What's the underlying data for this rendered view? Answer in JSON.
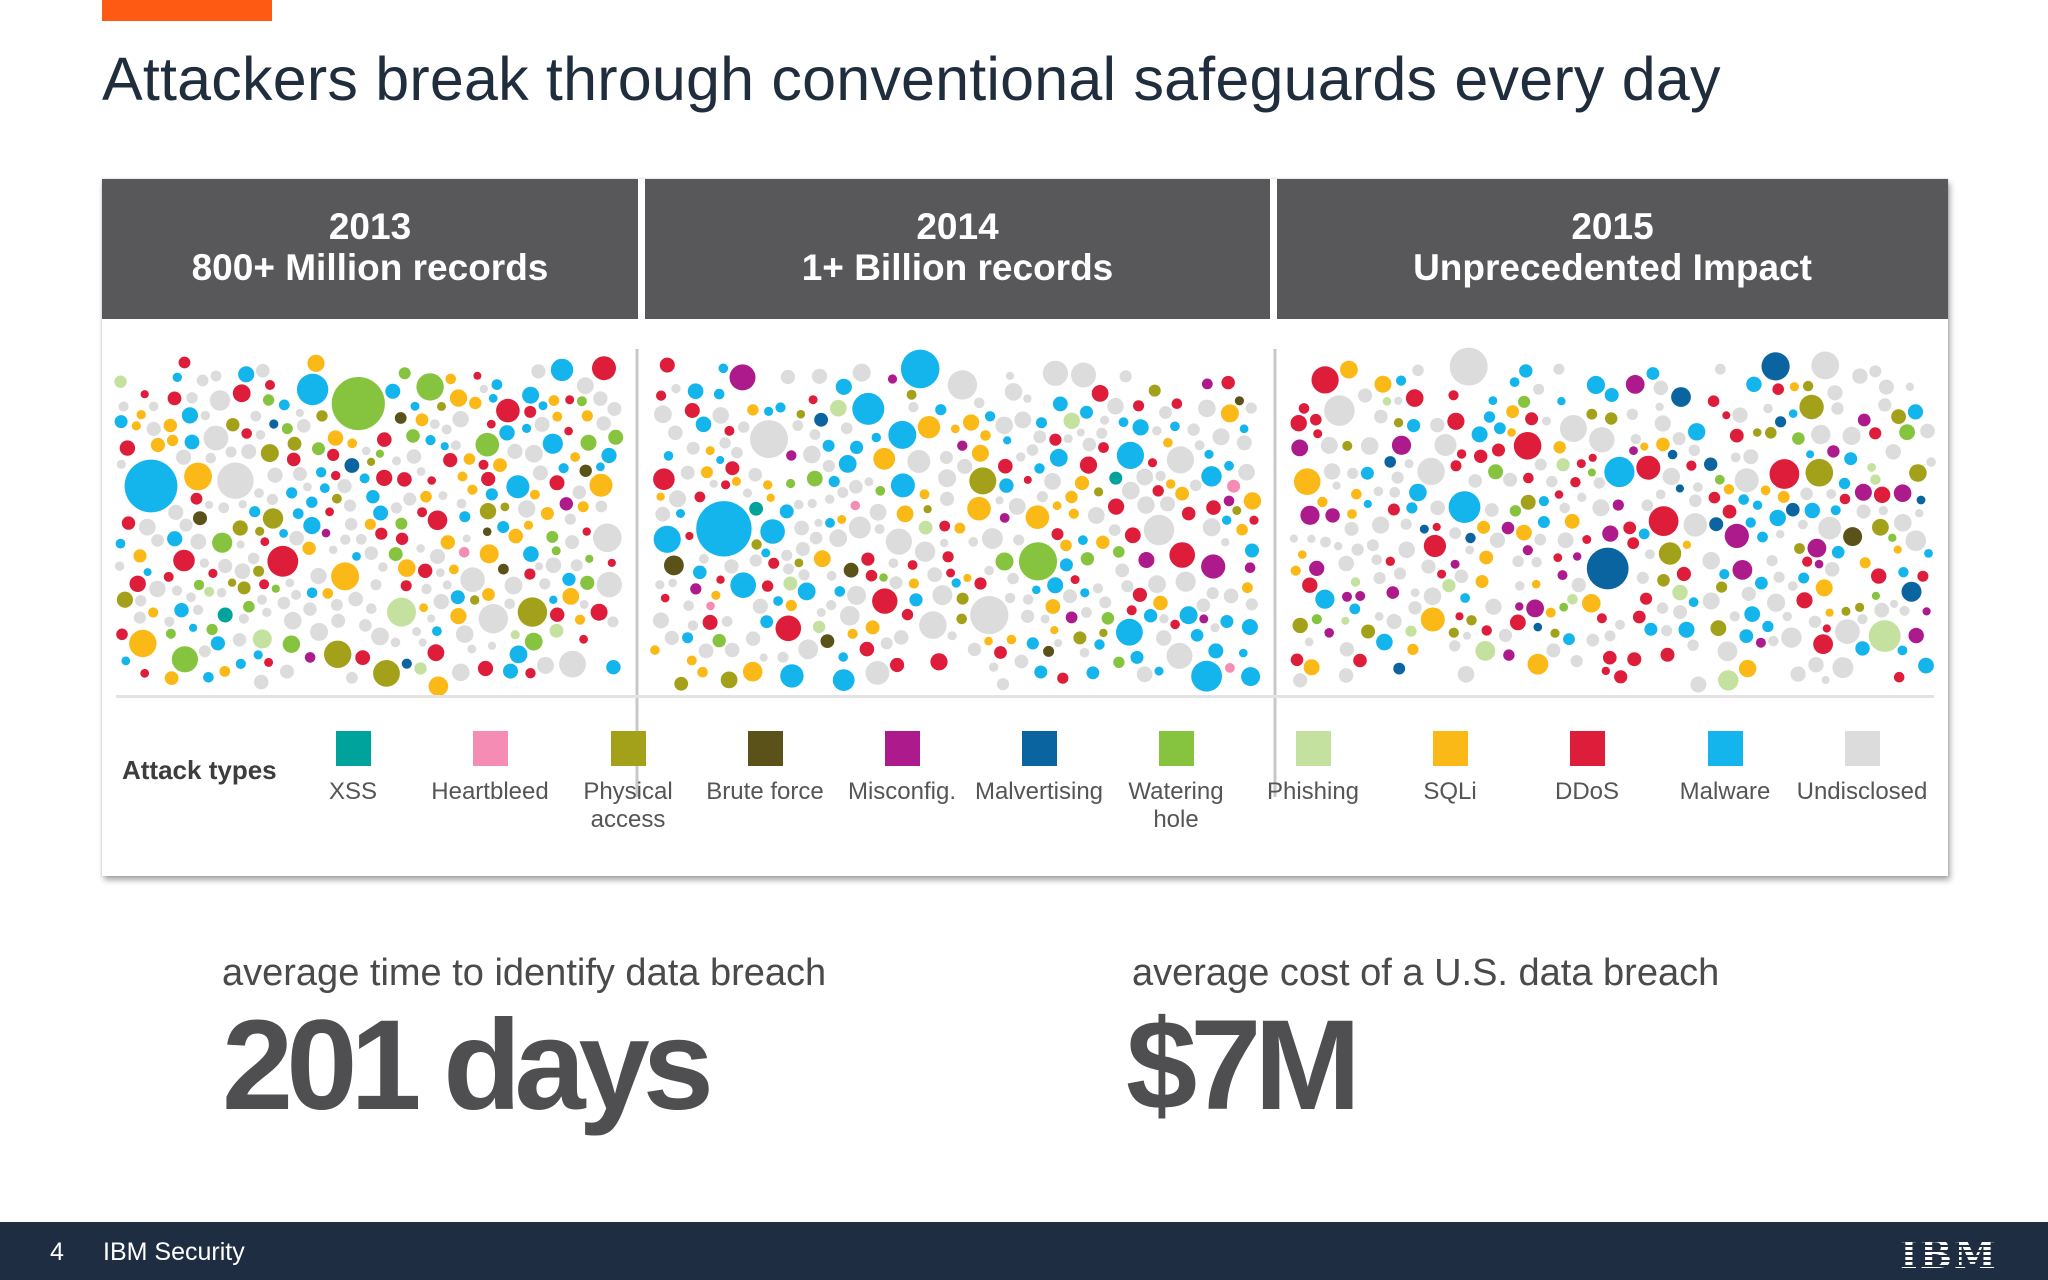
{
  "slide": {
    "title": "Attackers break through conventional safeguards every day"
  },
  "colors": {
    "accent": "#ff5a14",
    "header_bg": "#58585a",
    "footer_bg": "#1f2d42"
  },
  "years": [
    {
      "year": "2013",
      "subtitle": "800+ Million records"
    },
    {
      "year": "2014",
      "subtitle": "1+ Billion records"
    },
    {
      "year": "2015",
      "subtitle": "Unprecedented Impact"
    }
  ],
  "legend": {
    "label": "Attack types",
    "items": [
      {
        "name": "XSS",
        "color": "#00a39b"
      },
      {
        "name": "Heartbleed",
        "color": "#f58cb4"
      },
      {
        "name": "Physical\naccess",
        "color": "#a3a01a"
      },
      {
        "name": "Brute force",
        "color": "#5a5218"
      },
      {
        "name": "Misconfig.",
        "color": "#ac1a8c"
      },
      {
        "name": "Malvertising",
        "color": "#0a64a0"
      },
      {
        "name": "Watering\nhole",
        "color": "#86c440"
      },
      {
        "name": "Phishing",
        "color": "#c4e1a0"
      },
      {
        "name": "SQLi",
        "color": "#fbb917"
      },
      {
        "name": "DDoS",
        "color": "#dd1d3a"
      },
      {
        "name": "Malware",
        "color": "#14b4ec"
      },
      {
        "name": "Undisclosed",
        "color": "#dcdcdc"
      }
    ]
  },
  "stats": [
    {
      "label": "average time to identify data breach",
      "value": "201 days"
    },
    {
      "label": "average cost of a U.S. data breach",
      "value": "$7M"
    }
  ],
  "footer": {
    "page_number": "4",
    "brand": "IBM Security",
    "logo_text": "IBM"
  }
}
